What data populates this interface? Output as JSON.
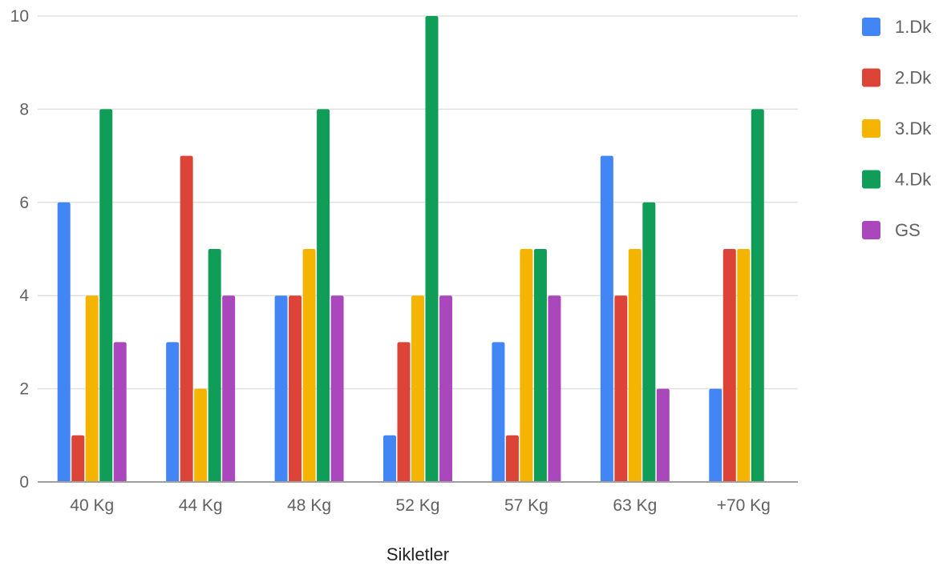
{
  "chart_data": {
    "type": "bar",
    "title": "",
    "xlabel": "Sikletler",
    "ylabel": "",
    "ylim": [
      0,
      10
    ],
    "yticks": [
      "0",
      "2",
      "4",
      "6",
      "8",
      "10"
    ],
    "grid": true,
    "legend_position": "right",
    "categories": [
      "40 Kg",
      "44 Kg",
      "48 Kg",
      "52 Kg",
      "57 Kg",
      "63 Kg",
      "+70 Kg"
    ],
    "series": [
      {
        "name": "1.Dk",
        "color": "#4285f4",
        "values": [
          6,
          3,
          4,
          1,
          3,
          7,
          2
        ]
      },
      {
        "name": "2.Dk",
        "color": "#db4437",
        "values": [
          1,
          7,
          4,
          3,
          1,
          4,
          5
        ]
      },
      {
        "name": "3.Dk",
        "color": "#f4b400",
        "values": [
          4,
          2,
          5,
          4,
          5,
          5,
          5
        ]
      },
      {
        "name": "4.Dk",
        "color": "#0f9d58",
        "values": [
          8,
          5,
          8,
          10,
          5,
          6,
          8
        ]
      },
      {
        "name": "GS",
        "color": "#ab47bc",
        "values": [
          3,
          4,
          4,
          4,
          4,
          2,
          0
        ]
      }
    ]
  }
}
